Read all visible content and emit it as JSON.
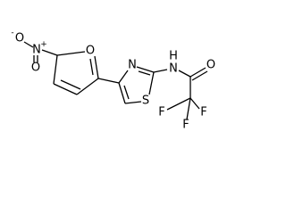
{
  "atoms": [
    {
      "label": "O",
      "charge": "-"
    },
    {
      "label": "N",
      "charge": "+"
    },
    {
      "label": "O"
    },
    {
      "label": "O"
    },
    {
      "label": "N"
    },
    {
      "label": "S"
    },
    {
      "label": "N",
      "hydrogen": "H"
    },
    {
      "label": "O"
    },
    {
      "label": "F"
    },
    {
      "label": "F"
    },
    {
      "label": "F"
    }
  ]
}
